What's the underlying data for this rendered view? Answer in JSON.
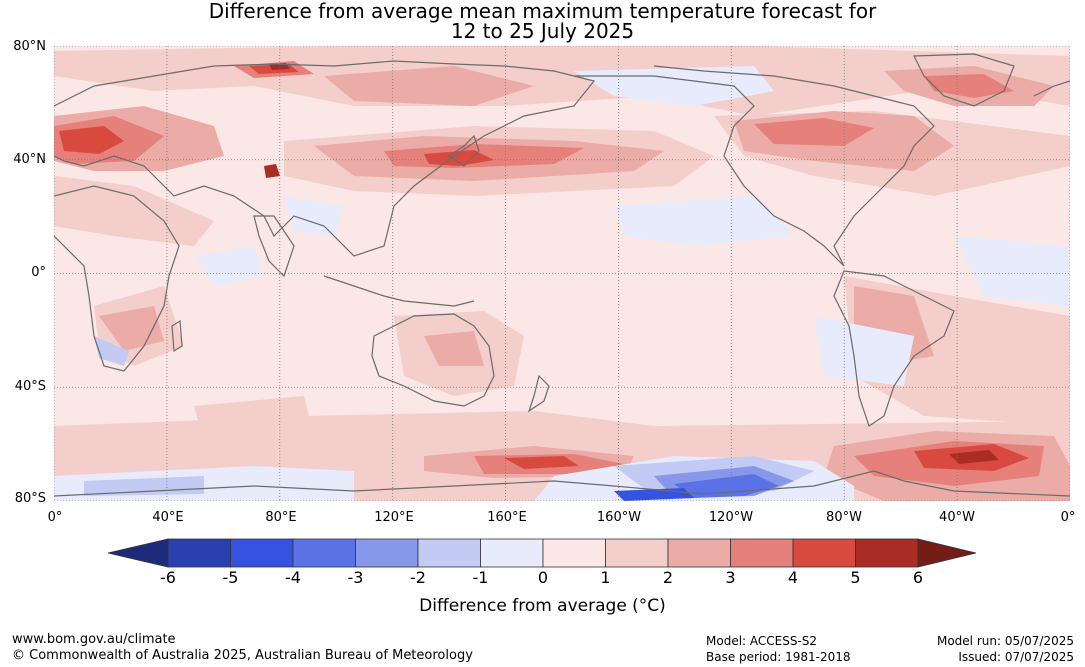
{
  "title_line1": "Difference from average mean maximum temperature forecast for",
  "title_line2": "12 to 25 July 2025",
  "map": {
    "projection": "equirectangular",
    "central_longitude": 180,
    "lat_range": [
      -80,
      80
    ],
    "lat_labels": [
      "80°N",
      "40°N",
      "0°",
      "40°S",
      "80°S"
    ],
    "lon_labels": [
      "0°",
      "40°E",
      "80°E",
      "120°E",
      "160°E",
      "160°W",
      "120°W",
      "80°W",
      "40°W",
      "0°"
    ],
    "gridlines": true,
    "colors": {
      "land_outline": "#6b6b6b",
      "gridline": "#777777"
    }
  },
  "colorbar": {
    "label": "Difference from average (°C)",
    "ticks": [
      "-6",
      "-5",
      "-4",
      "-3",
      "-2",
      "-1",
      "0",
      "1",
      "2",
      "3",
      "4",
      "5",
      "6"
    ],
    "colors": [
      "#1e2a7a",
      "#2a3fb0",
      "#3553e0",
      "#5b72e6",
      "#8797ea",
      "#c3caf3",
      "#e8ebfb",
      "#fbe7e5",
      "#f3cecb",
      "#ebaba6",
      "#e6807a",
      "#d84a40",
      "#a92c25",
      "#741d17"
    ]
  },
  "footer": {
    "website": "www.bom.gov.au/climate",
    "copyright": "© Commonwealth of Australia 2025, Australian Bureau of Meteorology",
    "model": "Model: ACCESS-S2",
    "base_period": "Base period: 1981-2018",
    "model_run": "Model run: 05/07/2025",
    "issued": "Issued: 07/07/2025"
  }
}
